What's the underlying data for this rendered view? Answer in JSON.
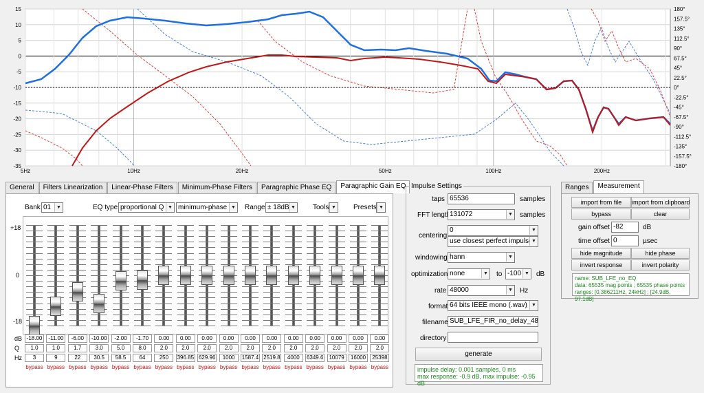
{
  "chart": {
    "x_labels": [
      "5Hz",
      "10Hz",
      "20Hz",
      "50Hz",
      "100Hz",
      "200Hz"
    ],
    "y_left": [
      "15",
      "10",
      "5",
      "0",
      "-5",
      "-10",
      "-15",
      "-20",
      "-25",
      "-30",
      "-35"
    ],
    "y_right": [
      "180°",
      "157.5°",
      "135°",
      "112.5°",
      "90°",
      "67.5°",
      "45°",
      "22.5°",
      "0°",
      "-22.5°",
      "-45°",
      "-67.5°",
      "-90°",
      "-112.5°",
      "-135°",
      "-157.5°",
      "-180°"
    ],
    "colors": {
      "magnitude_blue": "#1f6fe0",
      "magnitude_red": "#c01818",
      "phase_blue": "#4a7fe0",
      "phase_red": "#e04040"
    }
  },
  "tabs_left": [
    "General",
    "Filters Linearization",
    "Linear-Phase Filters",
    "Minimum-Phase Filters",
    "Paragraphic Phase EQ",
    "Paragraphic Gain EQ"
  ],
  "eq": {
    "bank_label": "Bank",
    "bank_value": "01",
    "eqtype_label": "EQ type",
    "eqtype_value": "proportional Q",
    "phase_value": "minimum-phase",
    "range_label": "Range",
    "range_value": "± 18dB",
    "tools_label": "Tools",
    "presets_label": "Presets",
    "scale": [
      "+18",
      "0",
      "-18"
    ],
    "row_labels": [
      "dB",
      "Q",
      "Hz"
    ],
    "bypass_label": "bypass",
    "bands": [
      {
        "db": "-18.00",
        "q": "1.0",
        "hz": "3",
        "level": 0.0
      },
      {
        "db": "-11.00",
        "q": "1.0",
        "hz": "9",
        "level": 0.194
      },
      {
        "db": "-6.00",
        "q": "1.7",
        "hz": "22",
        "level": 0.333
      },
      {
        "db": "-10.00",
        "q": "3.0",
        "hz": "30.5",
        "level": 0.222
      },
      {
        "db": "-2.00",
        "q": "5.0",
        "hz": "58.5",
        "level": 0.444
      },
      {
        "db": "-1.70",
        "q": "8.0",
        "hz": "64",
        "level": 0.453
      },
      {
        "db": "0.00",
        "q": "2.0",
        "hz": "250",
        "level": 0.5
      },
      {
        "db": "0.00",
        "q": "2.0",
        "hz": "396.85",
        "level": 0.5
      },
      {
        "db": "0.00",
        "q": "2.0",
        "hz": "629.96",
        "level": 0.5
      },
      {
        "db": "0.00",
        "q": "2.0",
        "hz": "1000",
        "level": 0.5
      },
      {
        "db": "0.00",
        "q": "2.0",
        "hz": "1587.4",
        "level": 0.5
      },
      {
        "db": "0.00",
        "q": "2.0",
        "hz": "2519.8",
        "level": 0.5
      },
      {
        "db": "0.00",
        "q": "2.0",
        "hz": "4000",
        "level": 0.5
      },
      {
        "db": "0.00",
        "q": "2.0",
        "hz": "6349.6",
        "level": 0.5
      },
      {
        "db": "0.00",
        "q": "2.0",
        "hz": "10079",
        "level": 0.5
      },
      {
        "db": "0.00",
        "q": "2.0",
        "hz": "16000",
        "level": 0.5
      },
      {
        "db": "0.00",
        "q": "2.0",
        "hz": "25398",
        "level": 0.5
      }
    ]
  },
  "impulse": {
    "group_title": "Impulse Settings",
    "taps_label": "taps",
    "taps_value": "65536",
    "taps_unit": "samples",
    "fft_label": "FFT length",
    "fft_value": "131072",
    "fft_unit": "samples",
    "centering_label": "centering",
    "centering_value1": "0",
    "centering_value2": "use closest perfect impulse",
    "windowing_label": "windowing",
    "windowing_value": "hann",
    "optimization_label": "optimization",
    "optimization_value": "none",
    "to_label": "to",
    "to_value": "-100",
    "to_unit": "dB",
    "rate_label": "rate",
    "rate_value": "48000",
    "rate_unit": "Hz",
    "format_label": "format",
    "format_value": "64 bits IEEE mono (.wav)",
    "filename_label": "filename",
    "filename_value": "SUB_LFE_FIR_no_delay_48k",
    "directory_label": "directory",
    "directory_value": "",
    "generate_label": "generate",
    "info_line1": "impulse delay: 0.001 samples, 0 ms",
    "info_line2": "max response: -0.9 dB, max impulse: -0.95 dB"
  },
  "ranges": {
    "tabs": [
      "Ranges",
      "Measurement"
    ],
    "import_file": "import from file",
    "import_clipboard": "import from clipboard",
    "bypass": "bypass",
    "clear": "clear",
    "gain_offset_label": "gain offset",
    "gain_offset_value": "-82",
    "gain_offset_unit": "dB",
    "time_offset_label": "time offset",
    "time_offset_value": "0",
    "time_offset_unit": "µsec",
    "hide_magnitude": "hide magnitude",
    "hide_phase": "hide phase",
    "invert_response": "invert response",
    "invert_polarity": "invert polarity",
    "info_name": "name: SUB_LFE_no_EQ",
    "info_data": "data: 65535 mag points ; 65535 phase points",
    "info_ranges": "ranges: [0.386211Hz, 24kHz] ; [24.9dB, 97.1dB]"
  }
}
